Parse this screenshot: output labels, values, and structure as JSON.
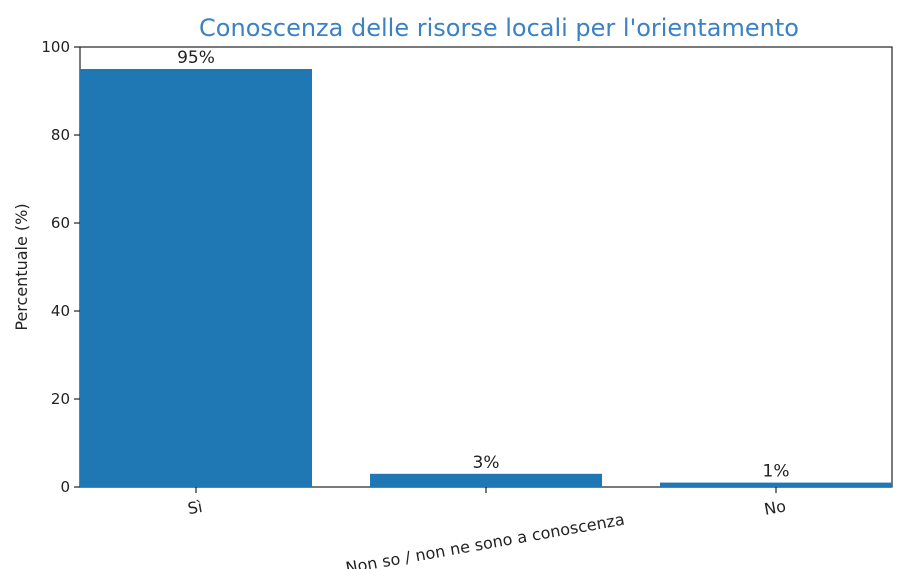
{
  "chart_data": {
    "type": "bar",
    "title": "Conoscenza delle risorse locali per l'orientamento",
    "xlabel": "",
    "ylabel": "Percentuale (%)",
    "categories": [
      "Sì",
      "Non so / non ne sono a conoscenza",
      "No"
    ],
    "values": [
      95,
      3,
      1
    ],
    "data_labels": [
      "95%",
      "3%",
      "1%"
    ],
    "ylim": [
      0,
      100
    ],
    "yticks": [
      0,
      20,
      40,
      60,
      80,
      100
    ],
    "bar_color": "#1f77b4",
    "grid": false
  }
}
